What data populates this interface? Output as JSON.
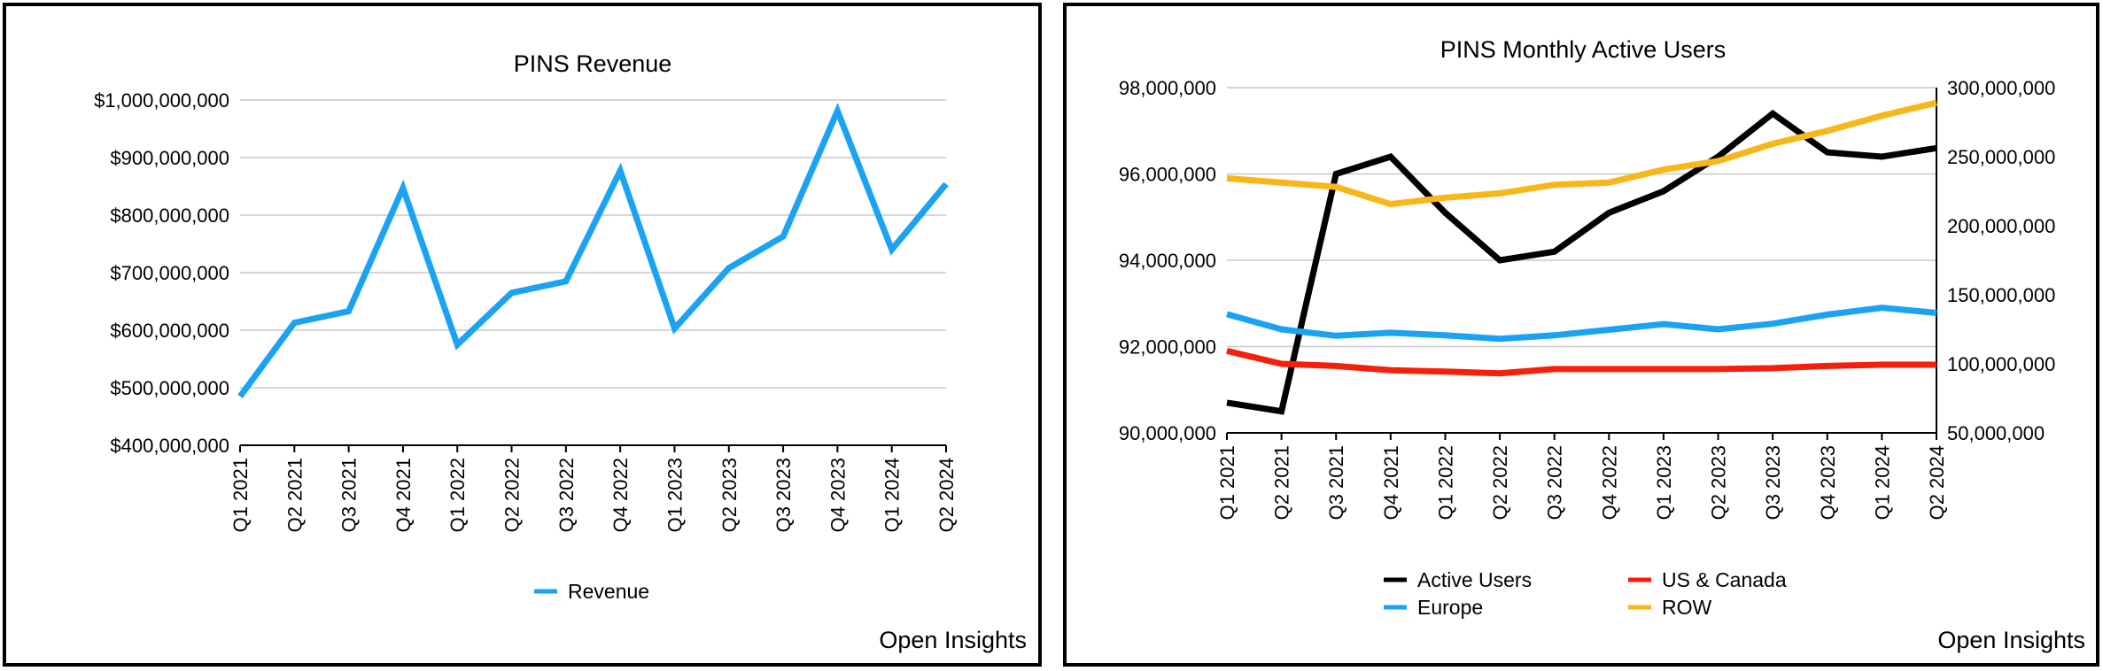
{
  "credit": "Open Insights",
  "chart_data": [
    {
      "type": "line",
      "title": "PINS Revenue",
      "xlabel": "",
      "ylabel": "",
      "categories": [
        "Q1 2021",
        "Q2 2021",
        "Q3 2021",
        "Q4 2021",
        "Q1 2022",
        "Q2 2022",
        "Q3 2022",
        "Q4 2022",
        "Q1 2023",
        "Q2 2023",
        "Q3 2023",
        "Q4 2023",
        "Q1 2024",
        "Q2 2024"
      ],
      "ylim": [
        400000000,
        1000000000
      ],
      "yticks": [
        "$400,000,000",
        "$500,000,000",
        "$600,000,000",
        "$700,000,000",
        "$800,000,000",
        "$900,000,000",
        "$1,000,000,000"
      ],
      "grid": true,
      "legend": "bottom",
      "series": [
        {
          "name": "Revenue",
          "color": "#1aa3f5",
          "values": [
            485000000,
            613000000,
            633000000,
            847000000,
            575000000,
            665000000,
            685000000,
            877000000,
            603000000,
            708000000,
            763000000,
            981000000,
            740000000,
            854000000
          ]
        }
      ]
    },
    {
      "type": "line",
      "title": "PINS Monthly Active Users",
      "xlabel": "",
      "ylabel": "",
      "categories": [
        "Q1 2021",
        "Q2 2021",
        "Q3 2021",
        "Q4 2021",
        "Q1 2022",
        "Q2 2022",
        "Q3 2022",
        "Q4 2022",
        "Q1 2023",
        "Q2 2023",
        "Q3 2023",
        "Q4 2023",
        "Q1 2024",
        "Q2 2024"
      ],
      "ylim": [
        90000000,
        98000000
      ],
      "ylim_right": [
        50000000,
        300000000
      ],
      "yticks": [
        "90,000,000",
        "92,000,000",
        "94,000,000",
        "96,000,000",
        "98,000,000"
      ],
      "yticks_right": [
        "50,000,000",
        "100,000,000",
        "150,000,000",
        "200,000,000",
        "250,000,000",
        "300,000,000"
      ],
      "grid": true,
      "legend": "bottom",
      "series": [
        {
          "name": "Active Users",
          "color": "#000000",
          "axis": "left",
          "values": [
            90700000,
            90500000,
            96000000,
            96400000,
            95100000,
            94000000,
            94200000,
            95100000,
            95600000,
            96400000,
            97400000,
            96500000,
            96400000,
            96600000
          ]
        },
        {
          "name": "US & Canada",
          "color": "#f5200c",
          "axis": "left",
          "values": [
            91900000,
            91600000,
            91550000,
            91450000,
            91420000,
            91380000,
            91480000,
            91480000,
            91480000,
            91480000,
            91500000,
            91550000,
            91580000,
            91580000
          ]
        },
        {
          "name": "Europe",
          "color": "#1aa3f5",
          "axis": "left",
          "values": [
            92750000,
            92400000,
            92250000,
            92320000,
            92260000,
            92180000,
            92260000,
            92390000,
            92520000,
            92400000,
            92530000,
            92740000,
            92900000,
            92780000
          ]
        },
        {
          "name": "ROW",
          "color": "#f7b718",
          "axis": "left",
          "values": [
            95900000,
            95800000,
            95700000,
            95300000,
            95450000,
            95550000,
            95750000,
            95800000,
            96100000,
            96300000,
            96700000,
            97000000,
            97350000,
            97650000
          ]
        }
      ]
    }
  ]
}
